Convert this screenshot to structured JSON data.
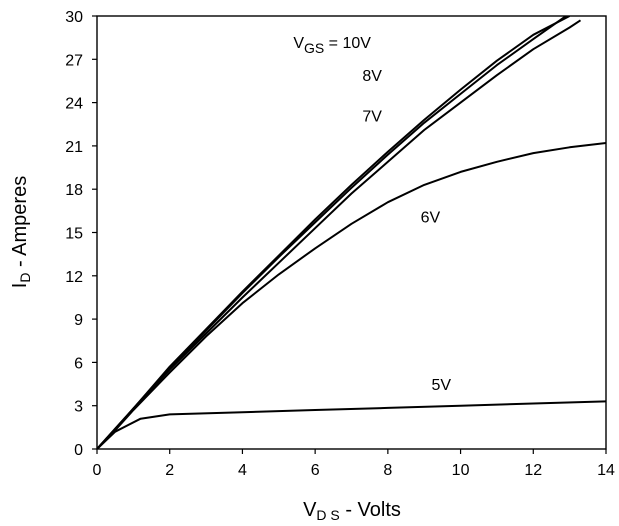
{
  "chart_data": {
    "type": "line",
    "title": "",
    "xlabel": {
      "main": "V",
      "sub": "D S",
      "suffix": " - Volts"
    },
    "ylabel": {
      "main": "I",
      "sub": "D",
      "suffix": " - Amperes"
    },
    "xlim": [
      0,
      14
    ],
    "ylim": [
      0,
      30
    ],
    "xticks": [
      "0",
      "2",
      "4",
      "6",
      "8",
      "10",
      "12",
      "14"
    ],
    "yticks": [
      "0",
      "3",
      "6",
      "9",
      "12",
      "15",
      "18",
      "21",
      "24",
      "27",
      "30"
    ],
    "grid": false,
    "series": [
      {
        "name": "10V",
        "x": [
          0,
          0.5,
          1,
          2,
          3,
          4,
          5,
          6,
          7,
          8,
          9,
          10,
          11,
          12,
          13.0
        ],
        "y": [
          0,
          1.4,
          2.8,
          5.7,
          8.3,
          10.9,
          13.4,
          15.9,
          18.3,
          20.6,
          22.8,
          24.9,
          26.9,
          28.7,
          30.0
        ]
      },
      {
        "name": "8V",
        "x": [
          0,
          0.5,
          1,
          2,
          3,
          4,
          5,
          6,
          7,
          8,
          9,
          10,
          11,
          12,
          12.9
        ],
        "y": [
          0,
          1.4,
          2.8,
          5.6,
          8.2,
          10.8,
          13.3,
          15.7,
          18.1,
          20.4,
          22.6,
          24.6,
          26.6,
          28.4,
          30.0
        ]
      },
      {
        "name": "7V",
        "x": [
          0,
          0.5,
          1,
          2,
          3,
          4,
          5,
          6,
          7,
          8,
          9,
          10,
          11,
          12,
          13,
          13.3
        ],
        "y": [
          0,
          1.4,
          2.8,
          5.5,
          8.0,
          10.5,
          12.9,
          15.3,
          17.7,
          19.9,
          22.1,
          24.0,
          25.9,
          27.7,
          29.2,
          29.7
        ]
      },
      {
        "name": "6V",
        "x": [
          0,
          0.5,
          1,
          2,
          3,
          4,
          5,
          6,
          7,
          8,
          9,
          10,
          11,
          12,
          13,
          14
        ],
        "y": [
          0,
          1.3,
          2.7,
          5.3,
          7.8,
          10.1,
          12.1,
          13.9,
          15.6,
          17.1,
          18.3,
          19.2,
          19.9,
          20.5,
          20.9,
          21.2
        ]
      },
      {
        "name": "5V",
        "x": [
          0,
          0.5,
          1.2,
          2,
          4,
          6,
          8,
          10,
          12,
          14
        ],
        "y": [
          0,
          1.2,
          2.1,
          2.4,
          2.55,
          2.7,
          2.85,
          3.0,
          3.15,
          3.3
        ]
      }
    ],
    "annotations": [
      {
        "main": "V",
        "sub": "GS",
        "suffix": " = 10V",
        "x": 5.4,
        "y": 27.8
      },
      {
        "main": "8V",
        "x": 7.3,
        "y": 25.5
      },
      {
        "main": "7V",
        "x": 7.3,
        "y": 22.7
      },
      {
        "main": "6V",
        "x": 8.9,
        "y": 15.7
      },
      {
        "main": "5V",
        "x": 9.2,
        "y": 4.1
      }
    ]
  }
}
